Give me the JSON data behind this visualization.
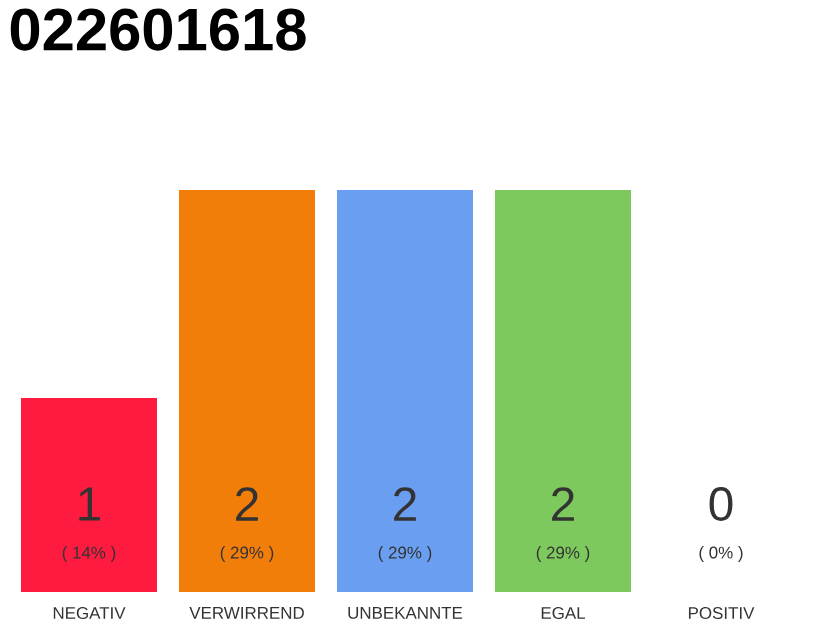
{
  "chart_data": {
    "type": "bar",
    "title": "022601618",
    "categories": [
      "NEGATIV",
      "VERWIRREND",
      "UNBEKANNTE",
      "EGAL",
      "POSITIV"
    ],
    "values": [
      14,
      29,
      29,
      29,
      0
    ],
    "colors": [
      "#ff1a40",
      "#f27e0a",
      "#6a9ef0",
      "#7dc95e",
      "#cccccc"
    ],
    "value_labels": [
      "( 14% )",
      "( 29% )",
      "( 29% )",
      "( 29% )",
      "( 0% )"
    ],
    "annotations": [
      "1",
      "2",
      "2",
      "2",
      "0"
    ]
  }
}
